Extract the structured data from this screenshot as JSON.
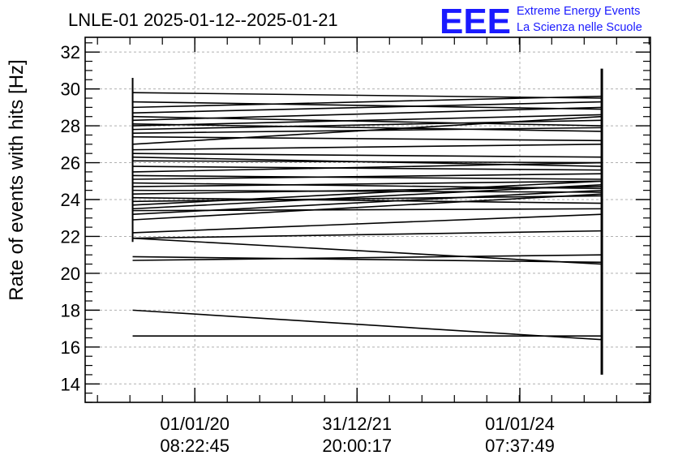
{
  "chart_data": {
    "type": "line",
    "title": "LNLE-01 2025-01-12--2025-01-21",
    "ylabel": "Rate of events with hits [Hz]",
    "xlabel": "",
    "ylim": [
      13.0,
      32.8
    ],
    "xlim": [
      0.0,
      1.0
    ],
    "y_ticks": [
      14,
      16,
      18,
      20,
      22,
      24,
      26,
      28,
      30,
      32
    ],
    "x_ticks": [
      {
        "x": 0.194,
        "date": "01/01/20",
        "time": "08:22:45"
      },
      {
        "x": 0.481,
        "date": "31/12/21",
        "time": "20:00:17"
      },
      {
        "x": 0.769,
        "date": "01/01/24",
        "time": "07:37:49"
      }
    ],
    "grid": true,
    "logo": {
      "mark": "EEE",
      "line1": "Extreme Energy Events",
      "line2": "La Scienza nelle Scuole"
    },
    "x_left": 0.084,
    "x_right": 0.914,
    "left_spike": [
      21.7,
      30.6
    ],
    "right_spike": [
      14.5,
      31.1
    ],
    "series": [
      {
        "values": [
          29.8,
          29.5
        ]
      },
      {
        "values": [
          29.3,
          28.9
        ]
      },
      {
        "values": [
          29.0,
          29.6
        ]
      },
      {
        "values": [
          28.7,
          29.3
        ]
      },
      {
        "values": [
          28.5,
          28.0
        ]
      },
      {
        "values": [
          28.3,
          29.0
        ]
      },
      {
        "values": [
          28.1,
          27.7
        ]
      },
      {
        "values": [
          28.0,
          28.6
        ]
      },
      {
        "values": [
          27.8,
          28.3
        ]
      },
      {
        "values": [
          27.6,
          27.9
        ]
      },
      {
        "values": [
          27.4,
          27.2
        ]
      },
      {
        "values": [
          27.0,
          28.5
        ]
      },
      {
        "values": [
          26.7,
          27.0
        ]
      },
      {
        "values": [
          26.5,
          26.3
        ]
      },
      {
        "values": [
          26.3,
          25.8
        ]
      },
      {
        "values": [
          26.1,
          26.0
        ]
      },
      {
        "values": [
          25.8,
          25.6
        ]
      },
      {
        "values": [
          25.5,
          26.0
        ]
      },
      {
        "values": [
          25.3,
          25.1
        ]
      },
      {
        "values": [
          25.1,
          25.4
        ]
      },
      {
        "values": [
          24.9,
          24.6
        ]
      },
      {
        "values": [
          24.7,
          25.0
        ]
      },
      {
        "values": [
          24.5,
          24.4
        ]
      },
      {
        "values": [
          24.3,
          24.7
        ]
      },
      {
        "values": [
          24.1,
          23.8
        ]
      },
      {
        "values": [
          23.9,
          24.2
        ]
      },
      {
        "values": [
          23.7,
          25.0
        ]
      },
      {
        "values": [
          23.5,
          24.8
        ]
      },
      {
        "values": [
          23.4,
          23.5
        ]
      },
      {
        "values": [
          23.2,
          24.5
        ]
      },
      {
        "values": [
          22.9,
          24.3
        ]
      },
      {
        "values": [
          22.2,
          23.2
        ]
      },
      {
        "values": [
          21.9,
          22.3
        ]
      },
      {
        "values": [
          21.9,
          20.5
        ]
      },
      {
        "values": [
          20.9,
          20.6
        ]
      },
      {
        "values": [
          20.7,
          21.0
        ]
      },
      {
        "values": [
          18.0,
          16.4
        ]
      },
      {
        "values": [
          16.6,
          16.6
        ]
      }
    ]
  }
}
